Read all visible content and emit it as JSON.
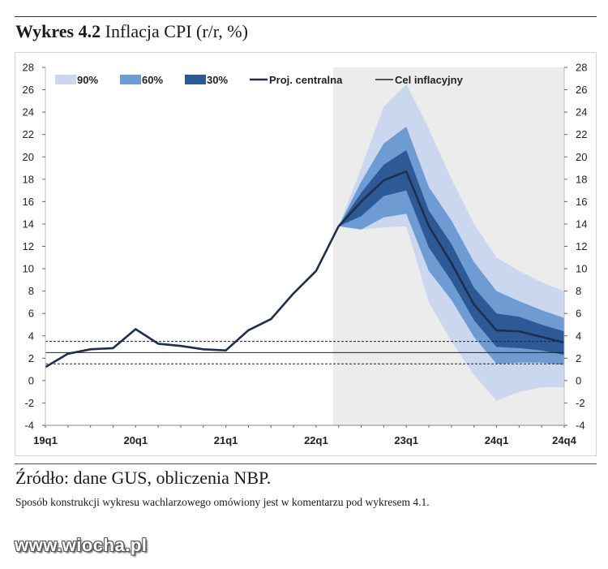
{
  "header": {
    "title_bold": "Wykres 4.2",
    "title_rest": " Inflacja CPI (r/r, %)"
  },
  "footer": {
    "source": "Źródło: dane GUS, obliczenia NBP.",
    "note": "Sposób konstrukcji wykresu wachlarzowego omówiony jest w komentarzu pod wykresem 4.1."
  },
  "watermark": "www.wiocha.pl",
  "chart_data": {
    "type": "area",
    "x_labels": [
      "19q1",
      "20q1",
      "21q1",
      "22q1",
      "23q1",
      "24q1",
      "24q4"
    ],
    "x_label_index": [
      0,
      4,
      8,
      12,
      16,
      20,
      23
    ],
    "ylim": [
      -4,
      28
    ],
    "yticks": [
      -4,
      -2,
      0,
      2,
      4,
      6,
      8,
      10,
      12,
      14,
      16,
      18,
      20,
      22,
      24,
      26,
      28
    ],
    "projection_start_index": 13,
    "legend": [
      {
        "name": "90%",
        "kind": "swatch",
        "color": "#cad7ee"
      },
      {
        "name": "60%",
        "kind": "swatch",
        "color": "#6f9bd3"
      },
      {
        "name": "30%",
        "kind": "swatch",
        "color": "#2d5a97"
      },
      {
        "name": "Proj. centralna",
        "kind": "line",
        "color": "#1f2e4d"
      },
      {
        "name": "Cel inflacyjny",
        "kind": "line",
        "color": "#222222"
      }
    ],
    "history": {
      "x": [
        0,
        1,
        2,
        3,
        4,
        5,
        6,
        7,
        8,
        9,
        10,
        11,
        12,
        13
      ],
      "values": [
        1.2,
        2.4,
        2.8,
        2.9,
        4.6,
        3.3,
        3.1,
        2.8,
        2.7,
        4.5,
        5.5,
        7.8,
        9.8,
        13.8
      ]
    },
    "projection": {
      "x": [
        13,
        14,
        15,
        16,
        17,
        18,
        19,
        20,
        21,
        22,
        23
      ],
      "central": [
        13.8,
        16.0,
        17.9,
        18.7,
        13.8,
        10.5,
        6.8,
        4.5,
        4.4,
        3.9,
        3.4
      ],
      "band90": {
        "lower": [
          13.8,
          13.5,
          13.7,
          13.8,
          7.0,
          3.5,
          0.5,
          -1.8,
          -1.0,
          -0.6,
          -0.6
        ],
        "upper": [
          13.8,
          19.0,
          24.5,
          26.5,
          22.5,
          18.0,
          14.0,
          11.0,
          9.8,
          8.8,
          8.0
        ]
      },
      "band60": {
        "lower": [
          13.8,
          13.5,
          14.6,
          14.9,
          9.8,
          7.2,
          3.9,
          1.5,
          1.6,
          1.6,
          1.4
        ],
        "upper": [
          13.8,
          17.8,
          21.2,
          22.7,
          17.3,
          14.3,
          10.6,
          8.0,
          7.1,
          6.3,
          5.6
        ]
      },
      "band30": {
        "lower": [
          13.8,
          14.7,
          16.5,
          17.0,
          11.9,
          8.9,
          5.4,
          3.0,
          2.9,
          2.7,
          2.3
        ],
        "upper": [
          13.8,
          16.8,
          19.3,
          20.6,
          15.2,
          12.2,
          8.3,
          6.0,
          5.7,
          5.0,
          4.4
        ]
      }
    },
    "target": {
      "value": 2.5,
      "tolerance": [
        1.5,
        3.5
      ]
    }
  }
}
